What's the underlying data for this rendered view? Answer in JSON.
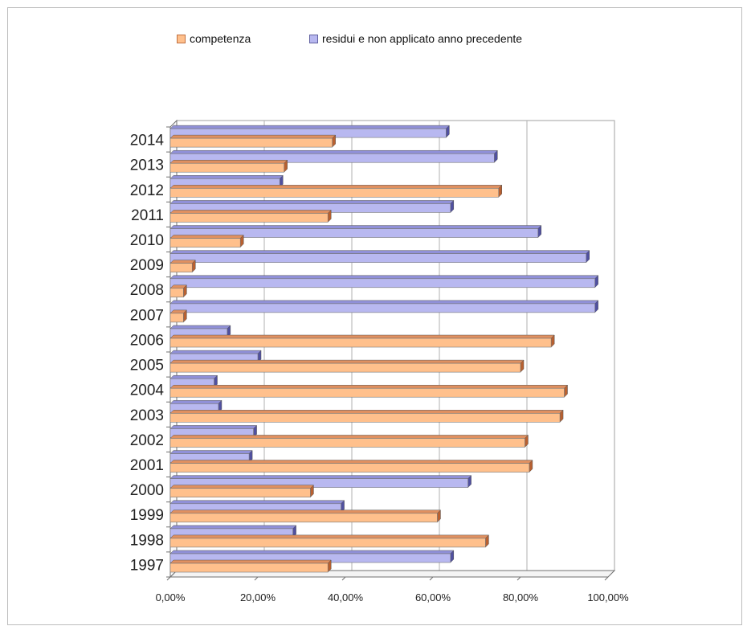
{
  "chart_data": {
    "type": "bar",
    "orientation": "horizontal",
    "style": "3d",
    "categories": [
      "1997",
      "1998",
      "1999",
      "2000",
      "2001",
      "2002",
      "2003",
      "2004",
      "2005",
      "2006",
      "2007",
      "2008",
      "2009",
      "2010",
      "2011",
      "2012",
      "2013",
      "2014"
    ],
    "series": [
      {
        "name": "competenza",
        "color": "#ffc08c",
        "values": [
          36,
          72,
          61,
          32,
          82,
          81,
          89,
          90,
          80,
          87,
          3,
          3,
          5,
          16,
          36,
          75,
          26,
          37
        ]
      },
      {
        "name": "residui e non applicato anno precedente",
        "color": "#b8b8f0",
        "values": [
          64,
          28,
          39,
          68,
          18,
          19,
          11,
          10,
          20,
          13,
          97,
          97,
          95,
          84,
          64,
          25,
          74,
          63
        ]
      }
    ],
    "xlim": [
      0,
      100
    ],
    "xticks": [
      "0,00%",
      "20,00%",
      "40,00%",
      "60,00%",
      "80,00%",
      "100,00%"
    ],
    "grid": true,
    "legend_position": "top"
  }
}
